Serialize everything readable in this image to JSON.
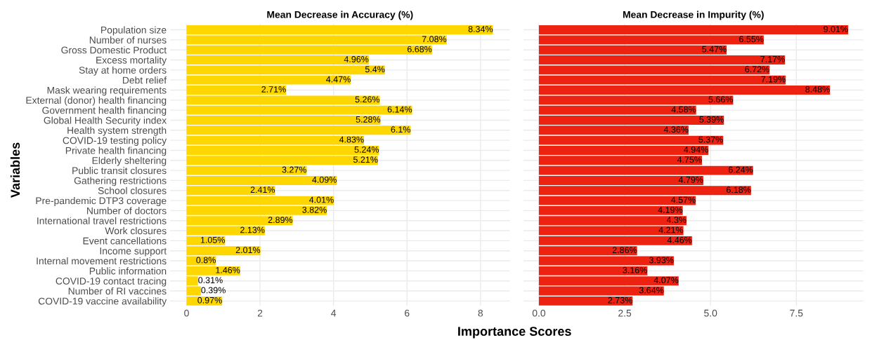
{
  "chart_data": [
    {
      "type": "bar",
      "orientation": "horizontal",
      "title": "Mean Decrease in Accuracy (%)",
      "xlabel": "Importance Scores",
      "ylabel": "Variables",
      "categories": [
        "Population size",
        "Number of nurses",
        "Gross Domestic Product",
        "Excess mortality",
        "Stay at home orders",
        "Debt relief",
        "Mask wearing requirements",
        "External (donor) health financing",
        "Government health financing",
        "Global Health Security index",
        "Health system strength",
        "COVID-19 testing policy",
        "Private health financing",
        "Elderly sheltering",
        "Public transit closures",
        "Gathering restrictions",
        "School closures",
        "Pre-pandemic DTP3 coverage",
        "Number of doctors",
        "International travel restrictions",
        "Work closures",
        "Event cancellations",
        "Income support",
        "Internal movement restrictions",
        "Public information",
        "COVID-19 contact tracing",
        "Number of RI vaccines",
        "COVID-19 vaccine availability"
      ],
      "values": [
        8.34,
        7.08,
        6.68,
        4.96,
        5.4,
        4.47,
        2.71,
        5.26,
        6.14,
        5.28,
        6.1,
        4.83,
        5.24,
        5.21,
        3.27,
        4.09,
        2.41,
        4.01,
        3.82,
        2.89,
        2.13,
        1.05,
        2.01,
        0.8,
        1.46,
        0.31,
        0.39,
        0.97
      ],
      "value_labels": [
        "8.34%",
        "7.08%",
        "6.68%",
        "4.96%",
        "5.4%",
        "4.47%",
        "2.71%",
        "5.26%",
        "6.14%",
        "5.28%",
        "6.1%",
        "4.83%",
        "5.24%",
        "5.21%",
        "3.27%",
        "4.09%",
        "2.41%",
        "4.01%",
        "3.82%",
        "2.89%",
        "2.13%",
        "1.05%",
        "2.01%",
        "0.8%",
        "1.46%",
        "0.31%",
        "0.39%",
        "0.97%"
      ],
      "color": "#ffd700",
      "xlim": [
        -0.45,
        8.8
      ],
      "xticks": [
        0,
        2,
        4,
        6,
        8
      ],
      "grid": true
    },
    {
      "type": "bar",
      "orientation": "horizontal",
      "title": "Mean Decrease in Impurity (%)",
      "values": [
        9.01,
        6.55,
        5.47,
        7.17,
        6.72,
        7.19,
        8.48,
        5.66,
        4.58,
        5.39,
        4.36,
        5.37,
        4.94,
        4.75,
        6.24,
        4.79,
        6.18,
        4.57,
        4.19,
        4.3,
        4.21,
        4.46,
        2.86,
        3.93,
        3.16,
        4.07,
        3.64,
        2.73
      ],
      "value_labels": [
        "9.01%",
        "6.55%",
        "5.47%",
        "7.17%",
        "6.72%",
        "7.19%",
        "8.48%",
        "5.66%",
        "4.58%",
        "5.39%",
        "4.36%",
        "5.37%",
        "4.94%",
        "4.75%",
        "6.24%",
        "4.79%",
        "6.18%",
        "4.57%",
        "4.19%",
        "4.3%",
        "4.21%",
        "4.46%",
        "2.86%",
        "3.93%",
        "3.16%",
        "4.07%",
        "3.64%",
        "2.73%"
      ],
      "color": "#ee2211",
      "xlim": [
        -0.45,
        9.45
      ],
      "xticks": [
        {
          "value": 0,
          "label": "0.0"
        },
        {
          "value": 2.5,
          "label": "2.5"
        },
        {
          "value": 5,
          "label": "5.0"
        },
        {
          "value": 7.5,
          "label": "7.5"
        }
      ],
      "grid": true
    }
  ]
}
